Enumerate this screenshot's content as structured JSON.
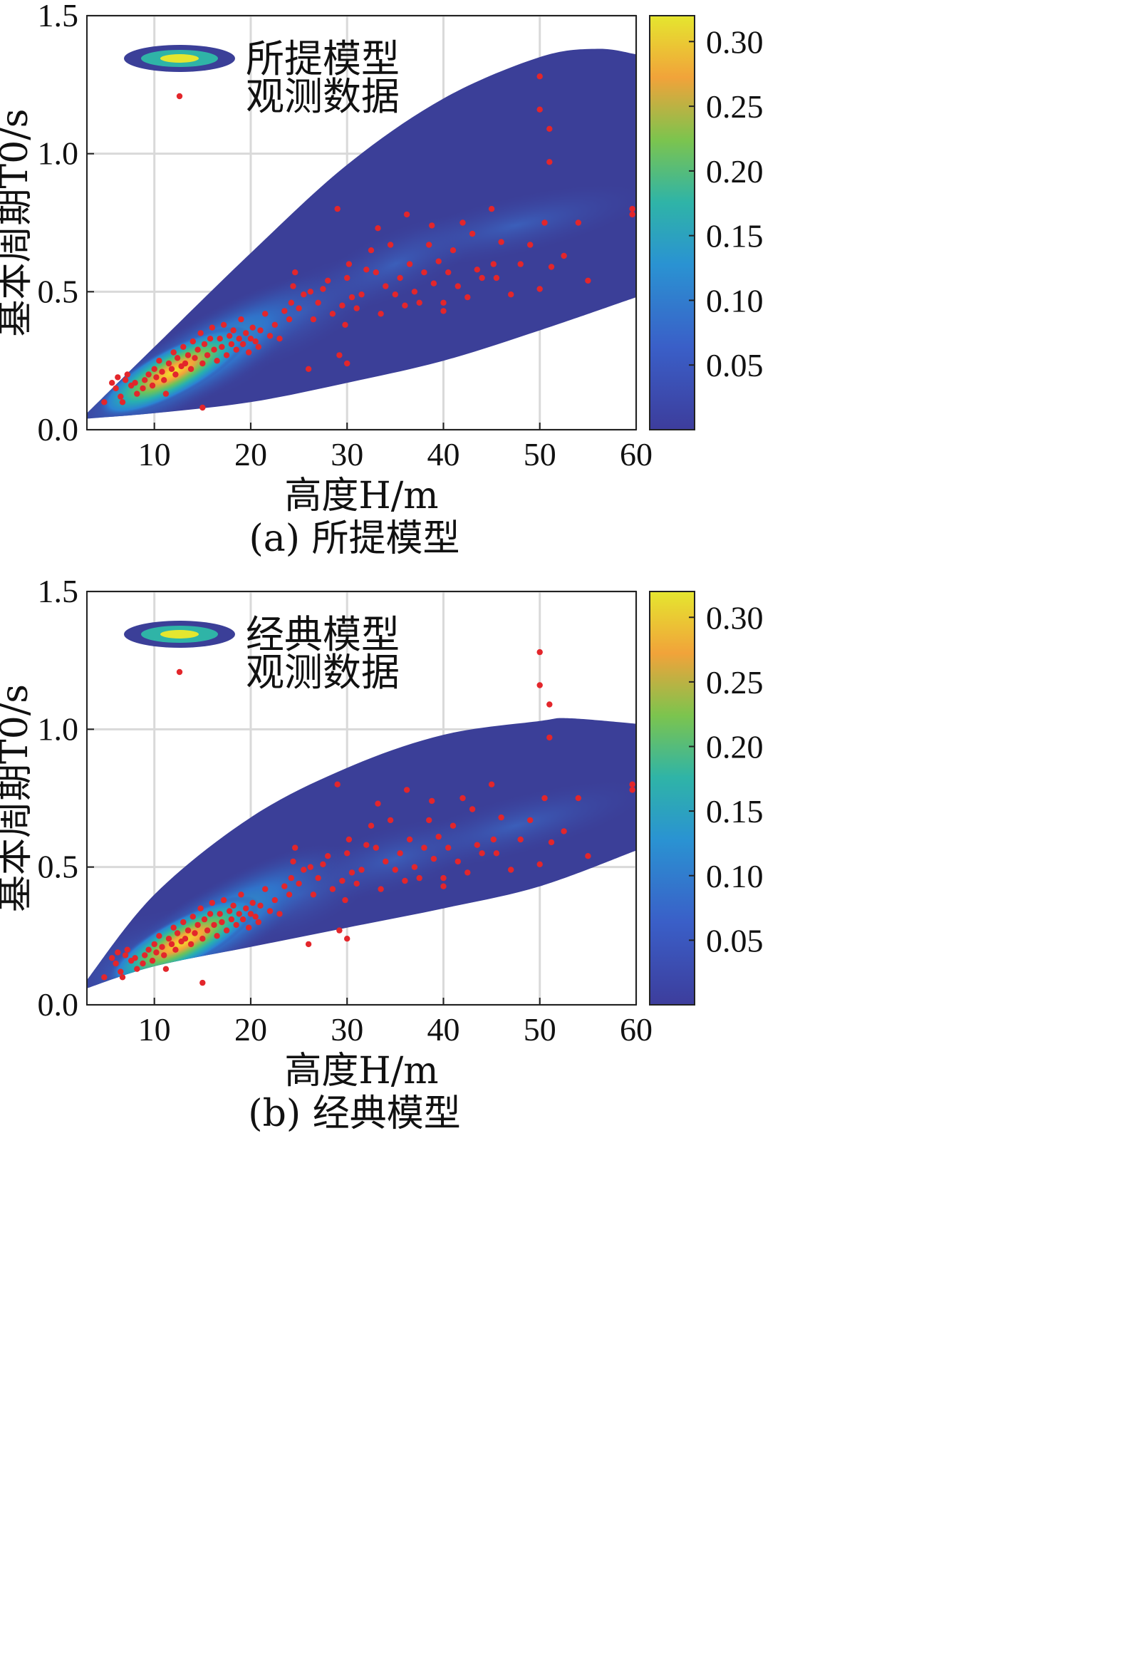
{
  "chart_data": [
    {
      "type": "scatter",
      "caption": "(a) 所提模型",
      "xlabel": "高度H/m",
      "ylabel": "基本周期T0/s",
      "xlim": [
        3,
        60
      ],
      "ylim": [
        0.0,
        1.5
      ],
      "xticks": [
        "10",
        "20",
        "30",
        "40",
        "50",
        "60"
      ],
      "yticks": [
        "0.0",
        "0.5",
        "1.0",
        "1.5"
      ],
      "legend": {
        "position": "top-left",
        "entries": [
          "所提模型",
          "观测数据"
        ]
      },
      "colorbar": {
        "ticks": [
          "0.05",
          "0.10",
          "0.15",
          "0.20",
          "0.25",
          "0.30"
        ],
        "max": 0.32
      },
      "density": {
        "upper": [
          [
            3,
            0.06
          ],
          [
            10,
            0.3
          ],
          [
            20,
            0.64
          ],
          [
            30,
            0.96
          ],
          [
            40,
            1.2
          ],
          [
            50,
            1.35
          ],
          [
            56,
            1.38
          ],
          [
            60,
            1.36
          ]
        ],
        "lower": [
          [
            3,
            0.04
          ],
          [
            10,
            0.06
          ],
          [
            20,
            0.1
          ],
          [
            30,
            0.17
          ],
          [
            40,
            0.25
          ],
          [
            50,
            0.36
          ],
          [
            60,
            0.48
          ]
        ],
        "peak": [
          12,
          0.21
        ],
        "ridge": [
          [
            3,
            0.05
          ],
          [
            12,
            0.21
          ],
          [
            20,
            0.32
          ],
          [
            30,
            0.52
          ],
          [
            40,
            0.68
          ],
          [
            55,
            0.8
          ]
        ]
      },
      "grid": true
    },
    {
      "type": "scatter",
      "caption": "(b) 经典模型",
      "xlabel": "高度H/m",
      "ylabel": "基本周期T0/s",
      "xlim": [
        3,
        60
      ],
      "ylim": [
        0.0,
        1.5
      ],
      "xticks": [
        "10",
        "20",
        "30",
        "40",
        "50",
        "60"
      ],
      "yticks": [
        "0.0",
        "0.5",
        "1.0",
        "1.5"
      ],
      "legend": {
        "position": "top-left",
        "entries": [
          "经典模型",
          "观测数据"
        ]
      },
      "colorbar": {
        "ticks": [
          "0.05",
          "0.10",
          "0.15",
          "0.20",
          "0.25",
          "0.30"
        ],
        "max": 0.32
      },
      "density": {
        "upper": [
          [
            3,
            0.09
          ],
          [
            10,
            0.4
          ],
          [
            20,
            0.68
          ],
          [
            30,
            0.86
          ],
          [
            40,
            0.98
          ],
          [
            50,
            1.03
          ],
          [
            53,
            1.04
          ],
          [
            60,
            1.02
          ]
        ],
        "lower": [
          [
            3,
            0.06
          ],
          [
            10,
            0.14
          ],
          [
            20,
            0.21
          ],
          [
            30,
            0.28
          ],
          [
            40,
            0.35
          ],
          [
            50,
            0.43
          ],
          [
            60,
            0.56
          ]
        ],
        "peak": [
          13,
          0.23
        ],
        "ridge": [
          [
            3,
            0.07
          ],
          [
            13,
            0.23
          ],
          [
            20,
            0.32
          ],
          [
            30,
            0.48
          ],
          [
            40,
            0.58
          ],
          [
            55,
            0.72
          ]
        ]
      },
      "grid": true
    }
  ],
  "observed_points": [
    [
      4.8,
      0.1
    ],
    [
      5.6,
      0.17
    ],
    [
      6.0,
      0.15
    ],
    [
      6.2,
      0.19
    ],
    [
      6.5,
      0.12
    ],
    [
      6.7,
      0.1
    ],
    [
      7.0,
      0.18
    ],
    [
      7.2,
      0.2
    ],
    [
      7.6,
      0.16
    ],
    [
      8.0,
      0.17
    ],
    [
      8.2,
      0.13
    ],
    [
      8.8,
      0.15
    ],
    [
      9.0,
      0.18
    ],
    [
      9.4,
      0.2
    ],
    [
      9.8,
      0.16
    ],
    [
      10.0,
      0.22
    ],
    [
      10.2,
      0.19
    ],
    [
      10.5,
      0.25
    ],
    [
      10.8,
      0.21
    ],
    [
      11.0,
      0.18
    ],
    [
      11.2,
      0.13
    ],
    [
      11.5,
      0.24
    ],
    [
      11.8,
      0.22
    ],
    [
      12.0,
      0.28
    ],
    [
      12.2,
      0.2
    ],
    [
      12.4,
      0.26
    ],
    [
      12.8,
      0.23
    ],
    [
      13.0,
      0.3
    ],
    [
      13.2,
      0.24
    ],
    [
      13.5,
      0.27
    ],
    [
      13.8,
      0.22
    ],
    [
      14.0,
      0.32
    ],
    [
      14.2,
      0.26
    ],
    [
      14.5,
      0.29
    ],
    [
      14.8,
      0.35
    ],
    [
      15.0,
      0.24
    ],
    [
      15.2,
      0.31
    ],
    [
      15.5,
      0.27
    ],
    [
      15.8,
      0.33
    ],
    [
      16.0,
      0.37
    ],
    [
      16.2,
      0.29
    ],
    [
      16.5,
      0.25
    ],
    [
      16.8,
      0.33
    ],
    [
      17.0,
      0.3
    ],
    [
      17.2,
      0.38
    ],
    [
      17.5,
      0.27
    ],
    [
      17.8,
      0.34
    ],
    [
      18.0,
      0.31
    ],
    [
      18.2,
      0.36
    ],
    [
      18.5,
      0.29
    ],
    [
      18.8,
      0.33
    ],
    [
      19.0,
      0.4
    ],
    [
      19.2,
      0.31
    ],
    [
      19.5,
      0.35
    ],
    [
      19.8,
      0.28
    ],
    [
      20.0,
      0.33
    ],
    [
      20.2,
      0.37
    ],
    [
      20.5,
      0.32
    ],
    [
      20.8,
      0.3
    ],
    [
      21.0,
      0.36
    ],
    [
      21.5,
      0.42
    ],
    [
      22.0,
      0.34
    ],
    [
      22.5,
      0.38
    ],
    [
      23.0,
      0.33
    ],
    [
      23.5,
      0.43
    ],
    [
      24.0,
      0.4
    ],
    [
      24.2,
      0.46
    ],
    [
      24.4,
      0.52
    ],
    [
      24.6,
      0.57
    ],
    [
      25.0,
      0.44
    ],
    [
      25.5,
      0.49
    ],
    [
      26.0,
      0.22
    ],
    [
      26.2,
      0.5
    ],
    [
      26.5,
      0.4
    ],
    [
      27.0,
      0.46
    ],
    [
      27.5,
      0.51
    ],
    [
      28.0,
      0.54
    ],
    [
      28.5,
      0.42
    ],
    [
      29.0,
      0.8
    ],
    [
      29.2,
      0.27
    ],
    [
      29.5,
      0.45
    ],
    [
      29.8,
      0.38
    ],
    [
      30.0,
      0.55
    ],
    [
      30.0,
      0.24
    ],
    [
      30.2,
      0.6
    ],
    [
      30.5,
      0.48
    ],
    [
      31.0,
      0.44
    ],
    [
      31.5,
      0.49
    ],
    [
      32.0,
      0.58
    ],
    [
      32.5,
      0.65
    ],
    [
      33.0,
      0.57
    ],
    [
      33.2,
      0.73
    ],
    [
      33.5,
      0.42
    ],
    [
      34.0,
      0.52
    ],
    [
      34.5,
      0.67
    ],
    [
      35.0,
      0.49
    ],
    [
      35.5,
      0.55
    ],
    [
      36.0,
      0.45
    ],
    [
      36.2,
      0.78
    ],
    [
      36.5,
      0.6
    ],
    [
      37.0,
      0.5
    ],
    [
      37.5,
      0.46
    ],
    [
      38.0,
      0.57
    ],
    [
      38.5,
      0.67
    ],
    [
      38.8,
      0.74
    ],
    [
      39.0,
      0.53
    ],
    [
      39.5,
      0.61
    ],
    [
      40.0,
      0.46
    ],
    [
      40.0,
      0.43
    ],
    [
      40.5,
      0.57
    ],
    [
      41.0,
      0.65
    ],
    [
      41.5,
      0.52
    ],
    [
      42.0,
      0.75
    ],
    [
      42.5,
      0.48
    ],
    [
      43.0,
      0.71
    ],
    [
      43.5,
      0.58
    ],
    [
      44.0,
      0.55
    ],
    [
      45.0,
      0.8
    ],
    [
      45.2,
      0.6
    ],
    [
      45.5,
      0.55
    ],
    [
      46.0,
      0.68
    ],
    [
      47.0,
      0.49
    ],
    [
      48.0,
      0.6
    ],
    [
      49.0,
      0.67
    ],
    [
      50.0,
      1.28
    ],
    [
      50.0,
      1.16
    ],
    [
      50.0,
      0.51
    ],
    [
      50.5,
      0.75
    ],
    [
      51.0,
      1.09
    ],
    [
      51.0,
      0.97
    ],
    [
      51.2,
      0.59
    ],
    [
      52.5,
      0.63
    ],
    [
      54.0,
      0.75
    ],
    [
      55.0,
      0.54
    ],
    [
      59.6,
      0.78
    ],
    [
      59.6,
      0.8
    ],
    [
      15.0,
      0.08
    ]
  ]
}
